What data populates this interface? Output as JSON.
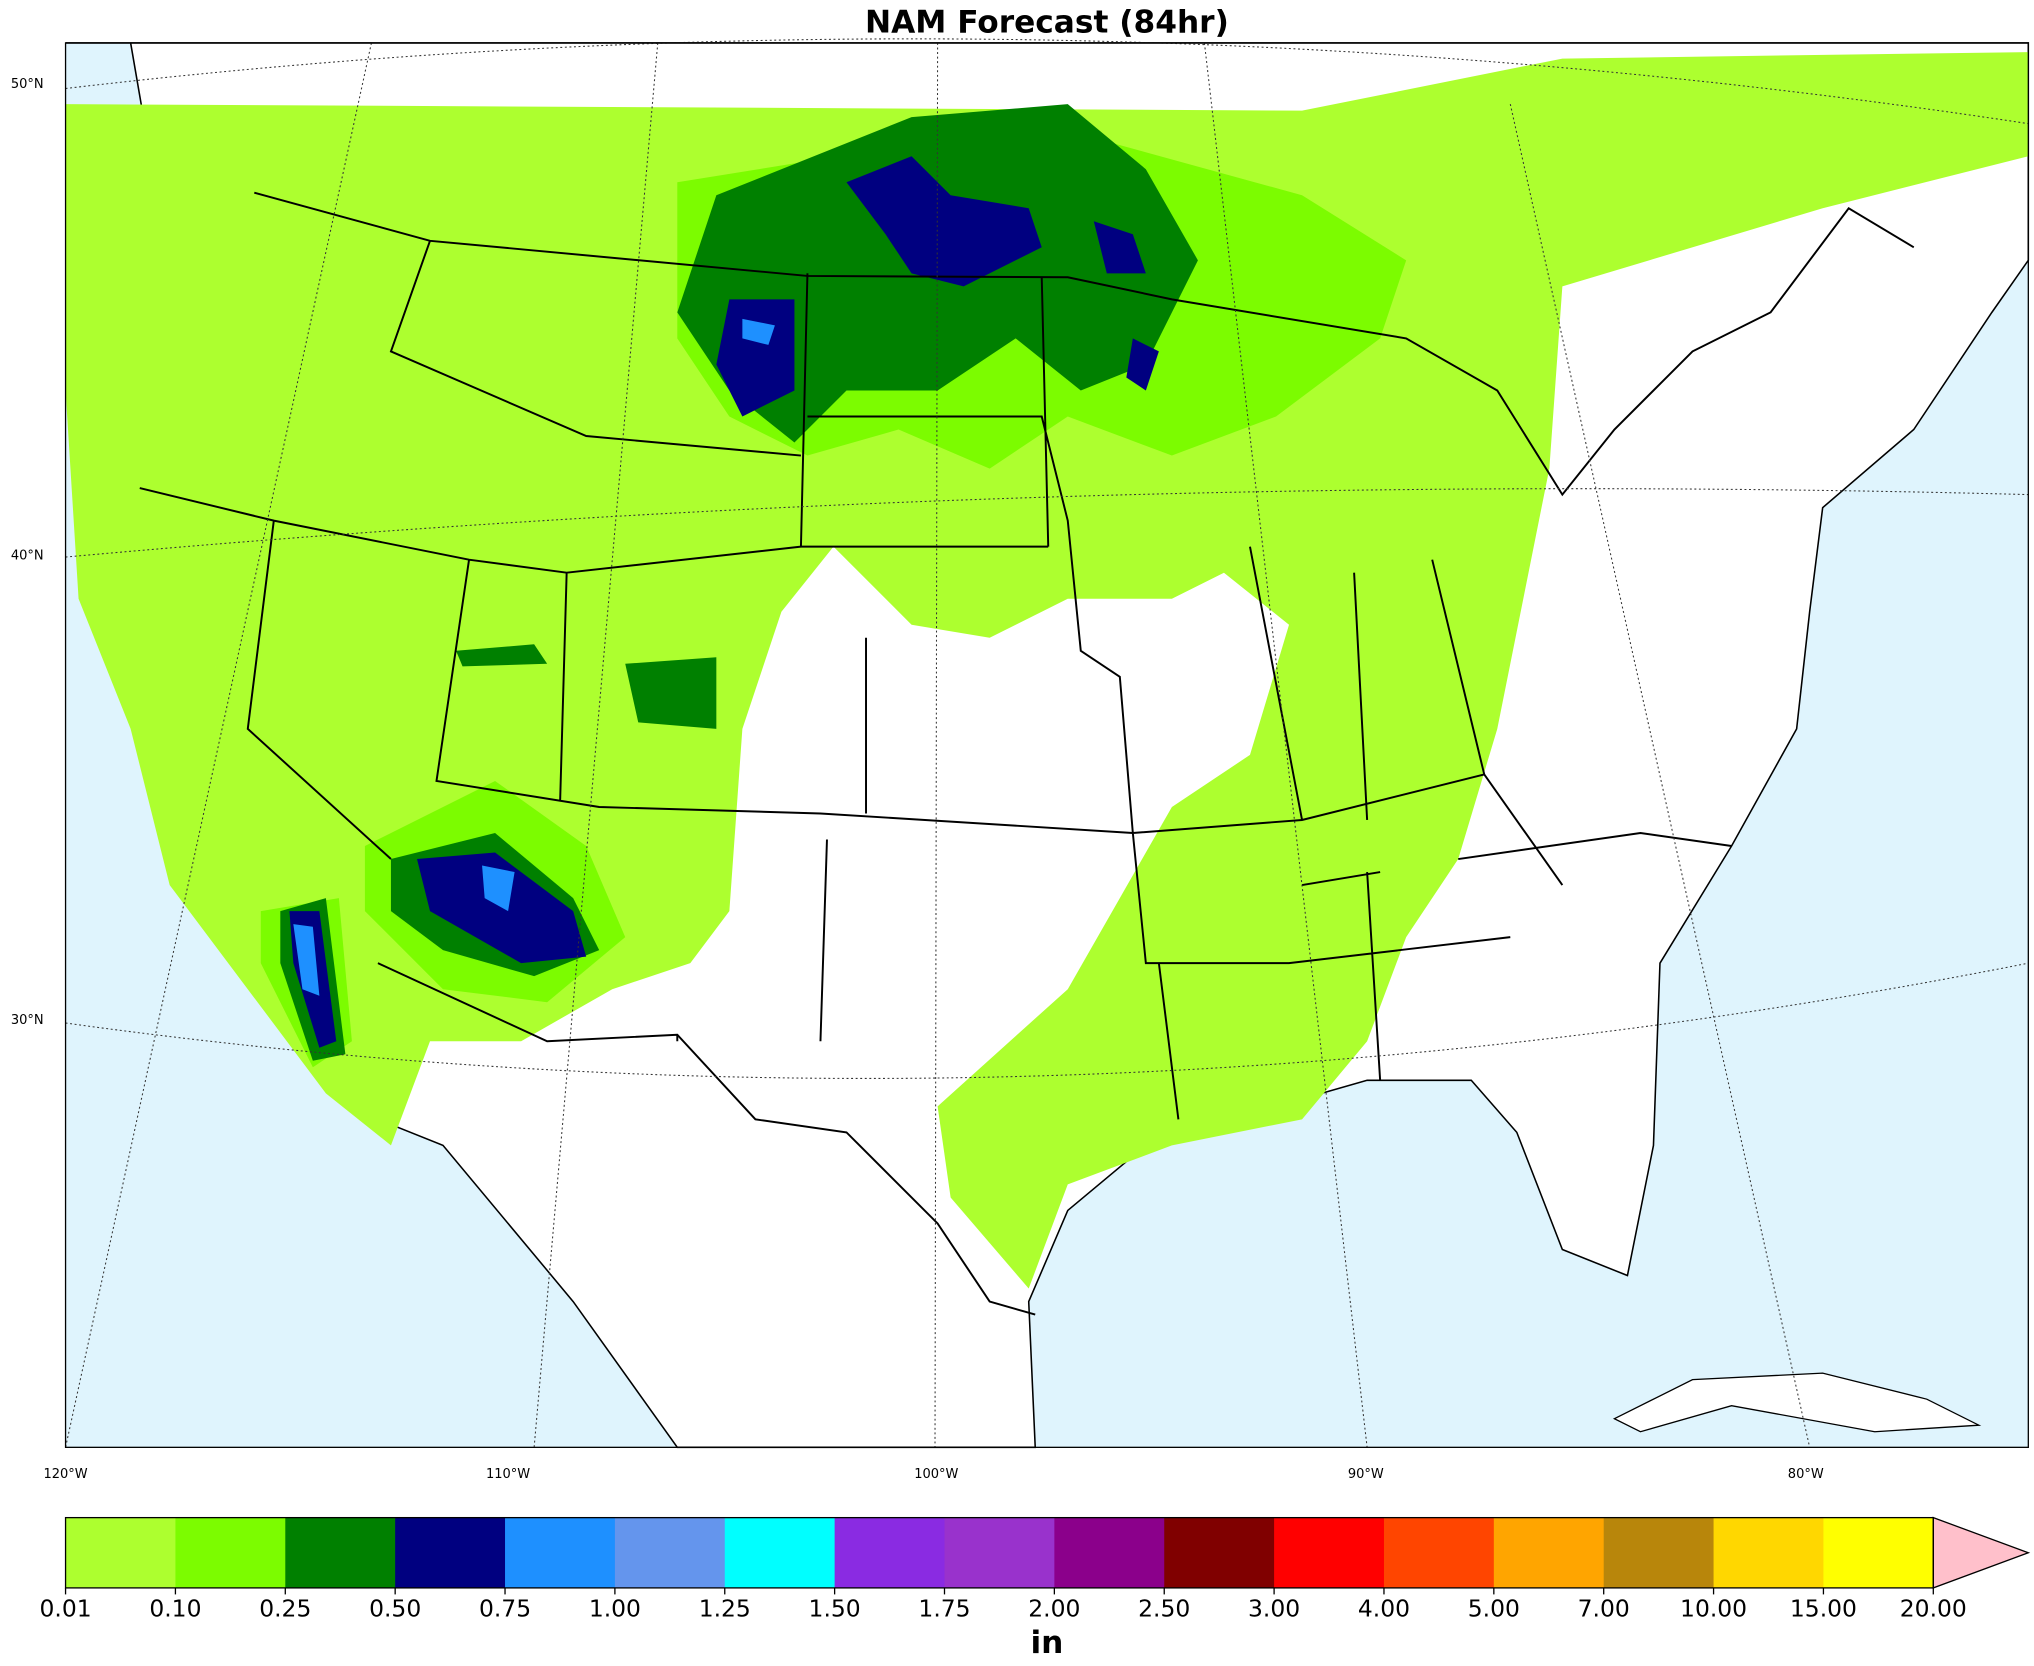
{
  "title": "NAM Forecast (84hr)",
  "map": {
    "lat_labels": [
      "50°N",
      "40°N",
      "30°N"
    ],
    "lon_labels": [
      "120°W",
      "110°W",
      "100°W",
      "90°W",
      "80°W"
    ]
  },
  "colorbar": {
    "ticks": [
      0.01,
      {
        "value": 0.1,
        "label": "0.10"
      },
      0.25,
      {
        "value": 0.5,
        "label": "0.50"
      },
      0.75,
      {
        "value": 1,
        "label": "1.00"
      },
      1.25,
      {
        "value": 1.5,
        "label": "1.50"
      },
      1.75,
      {
        "value": 2,
        "label": "2.00"
      },
      {
        "value": 2.5,
        "label": "2.50"
      },
      {
        "value": 3,
        "label": "3.00"
      },
      {
        "value": 4,
        "label": "4.00"
      },
      {
        "value": 5,
        "label": "5.00"
      },
      {
        "value": 7,
        "label": "7.00"
      },
      {
        "value": 10,
        "label": "10.00"
      },
      {
        "value": 15,
        "label": "15.00"
      },
      {
        "value": 20,
        "label": "20.00"
      }
    ],
    "colors": [
      "#adff2f",
      "#7cfc00",
      "#008000",
      "#000080",
      "#1e90ff",
      "#6495ed",
      "#00ffff",
      "#8a2be2",
      "#9932cc",
      "#8b008b",
      "#800000",
      "#ff0000",
      "#ff4500",
      "#ffa500",
      "#b8860b",
      "#ffd700",
      "#ffff00"
    ],
    "extend_color": "#ffc0cb",
    "unit": "in"
  }
}
